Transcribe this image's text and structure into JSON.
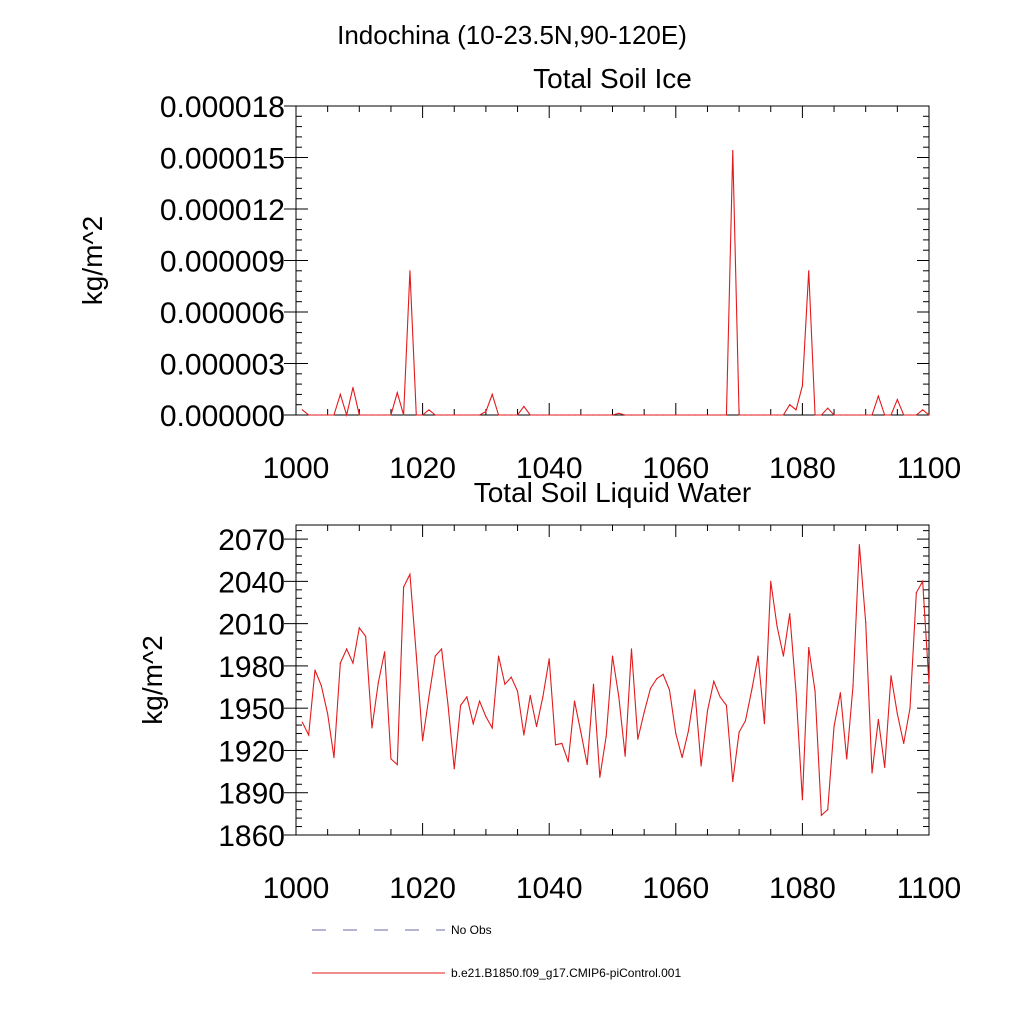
{
  "figure": {
    "title": "Indochina (10-23.5N,90-120E)"
  },
  "legend": {
    "placement": "bottom",
    "entries": [
      {
        "label": "No Obs",
        "color": "#6a6aa8",
        "style": "dashed"
      },
      {
        "label": "b.e21.B1850.f09_g17.CMIP6-piControl.001",
        "color": "#e31a1c",
        "style": "solid"
      }
    ]
  },
  "chart_data": [
    {
      "type": "line",
      "title": "Total Soil Ice",
      "ylabel": "kg/m^2",
      "xlabel": "",
      "xlim": [
        1000,
        1100
      ],
      "ylim": [
        0,
        1.8e-05
      ],
      "xticks": [
        "1000",
        "1020",
        "1040",
        "1060",
        "1080",
        "1100"
      ],
      "yticks": [
        "0.000000",
        "0.000003",
        "0.000006",
        "0.000009",
        "0.000012",
        "0.000015",
        "0.000018"
      ],
      "grid": false,
      "series": [
        {
          "color": "#e31a1c",
          "x": [
            1001,
            1002,
            1003,
            1004,
            1005,
            1006,
            1007,
            1008,
            1009,
            1010,
            1011,
            1012,
            1013,
            1014,
            1015,
            1016,
            1017,
            1018,
            1019,
            1020,
            1021,
            1022,
            1023,
            1024,
            1025,
            1026,
            1027,
            1028,
            1029,
            1030,
            1031,
            1032,
            1033,
            1034,
            1035,
            1036,
            1037,
            1038,
            1039,
            1040,
            1041,
            1042,
            1043,
            1044,
            1045,
            1046,
            1047,
            1048,
            1049,
            1050,
            1051,
            1052,
            1053,
            1054,
            1055,
            1056,
            1057,
            1058,
            1059,
            1060,
            1061,
            1062,
            1063,
            1064,
            1065,
            1066,
            1067,
            1068,
            1069,
            1070,
            1071,
            1072,
            1073,
            1074,
            1075,
            1076,
            1077,
            1078,
            1079,
            1080,
            1081,
            1082,
            1083,
            1084,
            1085,
            1086,
            1087,
            1088,
            1089,
            1090,
            1091,
            1092,
            1093,
            1094,
            1095,
            1096,
            1097,
            1098,
            1099,
            1100
          ],
          "y": [
            3e-07,
            0,
            0,
            0,
            0,
            0,
            1.2e-06,
            0,
            1.6e-06,
            0,
            0,
            0,
            0,
            0,
            0,
            1.3e-06,
            0,
            8.4e-06,
            0,
            0,
            3e-07,
            0,
            0,
            0,
            0,
            0,
            0,
            0,
            0,
            2e-07,
            1.2e-06,
            0,
            0,
            0,
            0,
            5e-07,
            0,
            0,
            0,
            0,
            0,
            0,
            0,
            0,
            0,
            0,
            0,
            0,
            0,
            0,
            1e-07,
            0,
            0,
            0,
            0,
            0,
            0,
            0,
            0,
            0,
            0,
            0,
            0,
            0,
            0,
            0,
            0,
            0,
            1.54e-05,
            0,
            0,
            0,
            0,
            0,
            0,
            0,
            0,
            6e-07,
            3e-07,
            1.7e-06,
            8.4e-06,
            0,
            0,
            4e-07,
            0,
            0,
            0,
            0,
            0,
            0,
            0,
            1.1e-06,
            0,
            0,
            9e-07,
            0,
            0,
            0,
            3e-07,
            0
          ]
        }
      ]
    },
    {
      "type": "line",
      "title": "Total Soil Liquid Water",
      "ylabel": "kg/m^2",
      "xlabel": "",
      "xlim": [
        1000,
        1100
      ],
      "ylim": [
        1860,
        2080
      ],
      "xticks": [
        "1000",
        "1020",
        "1040",
        "1060",
        "1080",
        "1100"
      ],
      "yticks": [
        "1860",
        "1890",
        "1920",
        "1950",
        "1980",
        "2010",
        "2040",
        "2070"
      ],
      "grid": false,
      "series": [
        {
          "color": "#e31a1c",
          "x": [
            1001,
            1002,
            1003,
            1004,
            1005,
            1006,
            1007,
            1008,
            1009,
            1010,
            1011,
            1012,
            1013,
            1014,
            1015,
            1016,
            1017,
            1018,
            1019,
            1020,
            1021,
            1022,
            1023,
            1024,
            1025,
            1026,
            1027,
            1028,
            1029,
            1030,
            1031,
            1032,
            1033,
            1034,
            1035,
            1036,
            1037,
            1038,
            1039,
            1040,
            1041,
            1042,
            1043,
            1044,
            1045,
            1046,
            1047,
            1048,
            1049,
            1050,
            1051,
            1052,
            1053,
            1054,
            1055,
            1056,
            1057,
            1058,
            1059,
            1060,
            1061,
            1062,
            1063,
            1064,
            1065,
            1066,
            1067,
            1068,
            1069,
            1070,
            1071,
            1072,
            1073,
            1074,
            1075,
            1076,
            1077,
            1078,
            1079,
            1080,
            1081,
            1082,
            1083,
            1084,
            1085,
            1086,
            1087,
            1088,
            1089,
            1090,
            1091,
            1092,
            1093,
            1094,
            1095,
            1096,
            1097,
            1098,
            1099,
            1100
          ],
          "y": [
            1940,
            1931,
            1977,
            1966,
            1946,
            1915,
            1982,
            1992,
            1982,
            2007,
            2001,
            1936,
            1968,
            1990,
            1914,
            1910,
            2036,
            2045,
            1988,
            1927,
            1958,
            1987,
            1992,
            1953,
            1907,
            1952,
            1958,
            1939,
            1955,
            1944,
            1936,
            1987,
            1967,
            1972,
            1962,
            1931,
            1959,
            1937,
            1958,
            1985,
            1924,
            1925,
            1912,
            1955,
            1933,
            1910,
            1967,
            1901,
            1930,
            1987,
            1958,
            1916,
            1992,
            1928,
            1947,
            1964,
            1971,
            1974,
            1963,
            1932,
            1915,
            1934,
            1963,
            1909,
            1948,
            1969,
            1958,
            1952,
            1898,
            1933,
            1941,
            1963,
            1987,
            1939,
            2040,
            2008,
            1987,
            2017,
            1961,
            1885,
            1993,
            1962,
            1874,
            1878,
            1937,
            1961,
            1914,
            1966,
            2066,
            2011,
            1904,
            1942,
            1908,
            1973,
            1946,
            1925,
            1950,
            2032,
            2040,
            1967
          ]
        }
      ]
    }
  ]
}
